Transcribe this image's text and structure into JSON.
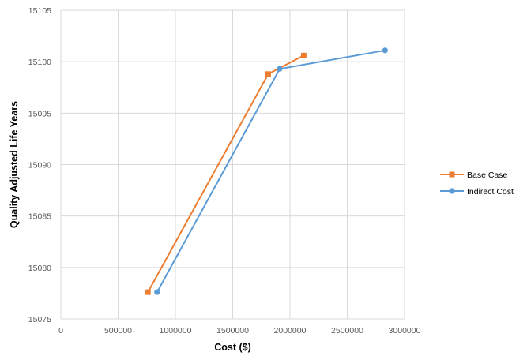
{
  "chart_data": {
    "type": "scatter",
    "title": "",
    "xlabel": "Cost ($)",
    "ylabel": "Quality Adjusted Life Years",
    "xlim": [
      0,
      3000000
    ],
    "ylim": [
      15075,
      15105
    ],
    "xticks": [
      0,
      500000,
      1000000,
      1500000,
      2000000,
      2500000,
      3000000
    ],
    "yticks": [
      15075,
      15080,
      15085,
      15090,
      15095,
      15100,
      15105
    ],
    "xtick_labels": [
      "0",
      "500000",
      "1000000",
      "1500000",
      "2000000",
      "2500000",
      "3000000"
    ],
    "ytick_labels": [
      "15075",
      "15080",
      "15085",
      "15090",
      "15095",
      "15100",
      "15105"
    ],
    "grid": true,
    "legend_position": "right",
    "series": [
      {
        "name": "Base Case",
        "color": "#ED7D31",
        "marker": "square",
        "points": [
          [
            760000,
            15077.6
          ],
          [
            1810000,
            15098.8
          ],
          [
            2120000,
            15100.6
          ]
        ]
      },
      {
        "name": "Indirect Cost",
        "color": "#5B9BD5",
        "marker": "circle",
        "points": [
          [
            840000,
            15077.6
          ],
          [
            1910000,
            15099.3
          ],
          [
            2830000,
            15101.1
          ]
        ]
      }
    ]
  }
}
